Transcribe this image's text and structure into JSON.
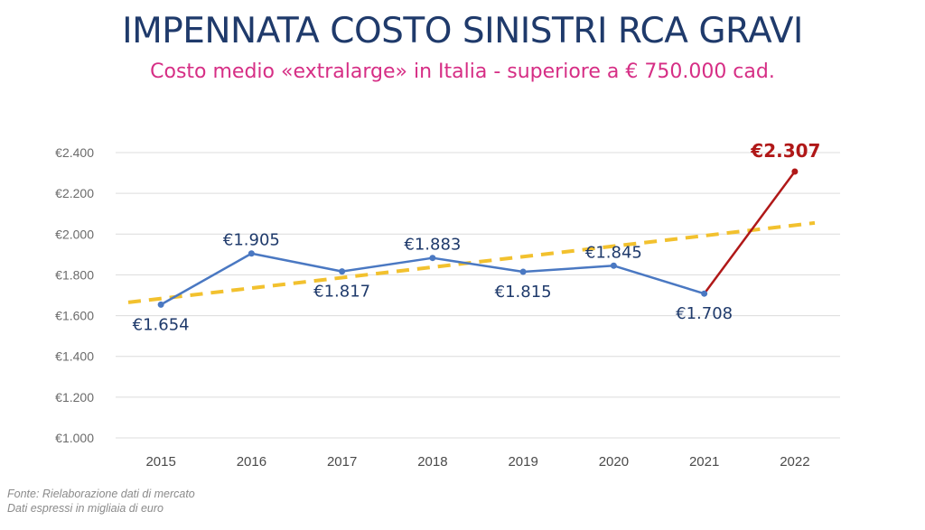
{
  "title": "IMPENNATA COSTO SINISTRI RCA GRAVI",
  "subtitle": "Costo medio «extralarge» in Italia - superiore a € 750.000 cad.",
  "footnotes": {
    "source": "Fonte: Rielaborazione dati di mercato",
    "units": "Dati espressi in migliaia di euro"
  },
  "colors": {
    "title": "#1f3a6b",
    "subtitle": "#d62e85",
    "series": "#4a78c2",
    "highlight": "#b01818",
    "trend": "#f2c12e",
    "grid": "#dcdcdc"
  },
  "chart_data": {
    "type": "line",
    "categories": [
      "2015",
      "2016",
      "2017",
      "2018",
      "2019",
      "2020",
      "2021",
      "2022"
    ],
    "values": [
      1654,
      1905,
      1817,
      1883,
      1815,
      1845,
      1708,
      2307
    ],
    "data_labels": [
      "€1.654",
      "€1.905",
      "€1.817",
      "€1.883",
      "€1.815",
      "€1.845",
      "€1.708",
      "€2.307"
    ],
    "highlight_index": 7,
    "ylim": [
      1000,
      2400
    ],
    "yticks": [
      1000,
      1200,
      1400,
      1600,
      1800,
      2000,
      2200,
      2400
    ],
    "ytick_labels": [
      "€1.000",
      "€1.200",
      "€1.400",
      "€1.600",
      "€1.800",
      "€2.000",
      "€2.200",
      "€2.400"
    ],
    "trendline": {
      "type": "linear",
      "style": "dashed",
      "start_value": 1665,
      "end_value": 2055
    },
    "grid": true,
    "legend": false
  }
}
